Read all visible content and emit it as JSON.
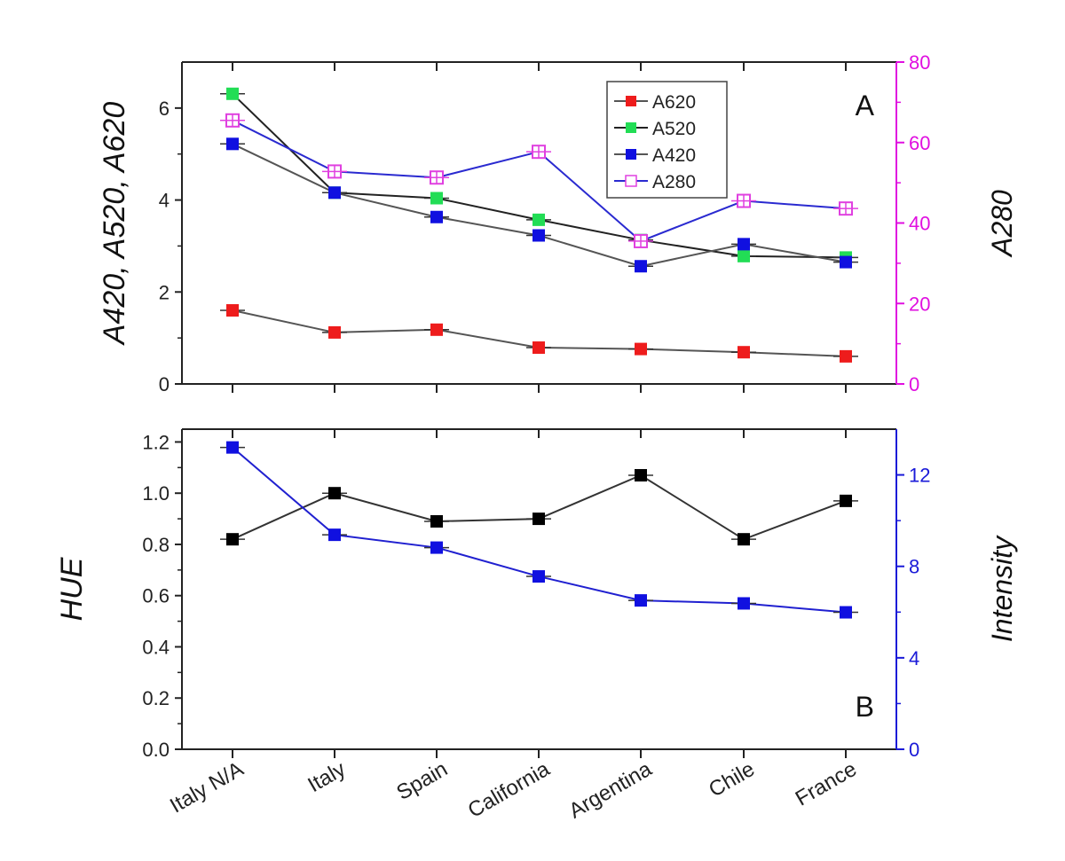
{
  "chart_data": [
    {
      "panel_label": "A",
      "type": "line",
      "categories": [
        "Italy N/A",
        "Italy",
        "Spain",
        "California",
        "Argentina",
        "Chile",
        "France"
      ],
      "ylabel": "A420, A520, A620",
      "ylabel_right": "A280",
      "ylim": [
        0,
        7
      ],
      "ylim_right": [
        0,
        80
      ],
      "yticks": [
        0,
        2,
        4,
        6
      ],
      "yticks_right": [
        0,
        20,
        40,
        60,
        80
      ],
      "legend_position": "top-right",
      "series": [
        {
          "name": "A620",
          "axis": "left",
          "marker": "filled-square",
          "marker_color": "#ee1c1c",
          "line_color": "#555555",
          "values": [
            1.6,
            1.12,
            1.18,
            0.79,
            0.76,
            0.69,
            0.6
          ]
        },
        {
          "name": "A520",
          "axis": "left",
          "marker": "filled-square",
          "marker_color": "#22dd55",
          "line_color": "#222222",
          "values": [
            6.31,
            4.16,
            4.04,
            3.57,
            3.13,
            2.78,
            2.75
          ]
        },
        {
          "name": "A420",
          "axis": "left",
          "marker": "filled-square",
          "marker_color": "#1010e0",
          "line_color": "#555555",
          "values": [
            5.22,
            4.16,
            3.63,
            3.23,
            2.56,
            3.04,
            2.65
          ]
        },
        {
          "name": "A280",
          "axis": "right",
          "marker": "open-square",
          "marker_color": "#e040e0",
          "line_color": "#2a2ad0",
          "values": [
            65.5,
            52.8,
            51.3,
            57.7,
            35.5,
            45.5,
            43.6
          ]
        }
      ],
      "right_axis_color": "#e010e0"
    },
    {
      "panel_label": "B",
      "type": "line",
      "categories": [
        "Italy N/A",
        "Italy",
        "Spain",
        "California",
        "Argentina",
        "Chile",
        "France"
      ],
      "ylabel": "HUE",
      "ylabel_right": "Intensity",
      "ylim": [
        0,
        1.25
      ],
      "ylim_right": [
        0,
        14
      ],
      "yticks": [
        0.0,
        0.2,
        0.4,
        0.6,
        0.8,
        1.0,
        1.2
      ],
      "ytick_labels": [
        "0.0",
        "0.2",
        "0.4",
        "0.6",
        "0.8",
        "1.0",
        "1.2"
      ],
      "yticks_right": [
        0,
        4,
        8,
        12
      ],
      "series": [
        {
          "axis": "left",
          "marker": "filled-square",
          "marker_color": "#000000",
          "line_color": "#333333",
          "values": [
            0.82,
            1.0,
            0.89,
            0.9,
            1.07,
            0.82,
            0.97
          ]
        },
        {
          "axis": "right",
          "marker": "filled-square",
          "marker_color": "#1010e0",
          "line_color": "#2020d0",
          "values": [
            13.2,
            9.38,
            8.82,
            7.56,
            6.51,
            6.38,
            5.99
          ]
        }
      ],
      "right_axis_color": "#1a1ad8"
    }
  ]
}
